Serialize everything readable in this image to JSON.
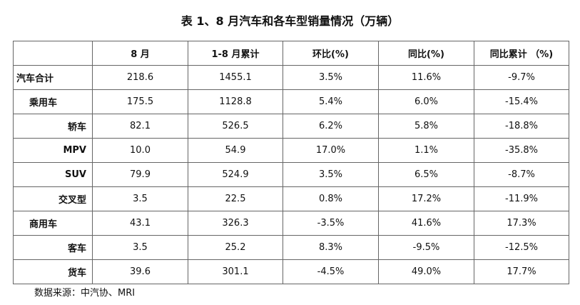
{
  "title": "表 1、8 月汽车和各车型销量情况（万辆）",
  "table": {
    "header": [
      "8 月",
      "1-8 月累计",
      "环比(%)",
      "同比(%)",
      "同比累计 （%)"
    ],
    "rows": [
      {
        "label": "汽车合计",
        "level": 1,
        "cells": [
          "218.6",
          "1455.1",
          "3.5%",
          "11.6%",
          "-9.7%"
        ]
      },
      {
        "label": "乘用车",
        "level": 2,
        "cells": [
          "175.5",
          "1128.8",
          "5.4%",
          "6.0%",
          "-15.4%"
        ]
      },
      {
        "label": "轿车",
        "level": 3,
        "cells": [
          "82.1",
          "526.5",
          "6.2%",
          "5.8%",
          "-18.8%"
        ]
      },
      {
        "label": "MPV",
        "level": 3,
        "cells": [
          "10.0",
          "54.9",
          "17.0%",
          "1.1%",
          "-35.8%"
        ]
      },
      {
        "label": "SUV",
        "level": 3,
        "cells": [
          "79.9",
          "524.9",
          "3.5%",
          "6.5%",
          "-8.7%"
        ]
      },
      {
        "label": "交叉型",
        "level": 3,
        "cells": [
          "3.5",
          "22.5",
          "0.8%",
          "17.2%",
          "-11.9%"
        ]
      },
      {
        "label": "商用车",
        "level": 2,
        "cells": [
          "43.1",
          "326.3",
          "-3.5%",
          "41.6%",
          "17.3%"
        ]
      },
      {
        "label": "客车",
        "level": 3,
        "cells": [
          "3.5",
          "25.2",
          "8.3%",
          "-9.5%",
          "-12.5%"
        ]
      },
      {
        "label": "货车",
        "level": 3,
        "cells": [
          "39.6",
          "301.1",
          "-4.5%",
          "49.0%",
          "17.7%"
        ]
      }
    ]
  },
  "source": "数据来源：中汽协、MRI"
}
